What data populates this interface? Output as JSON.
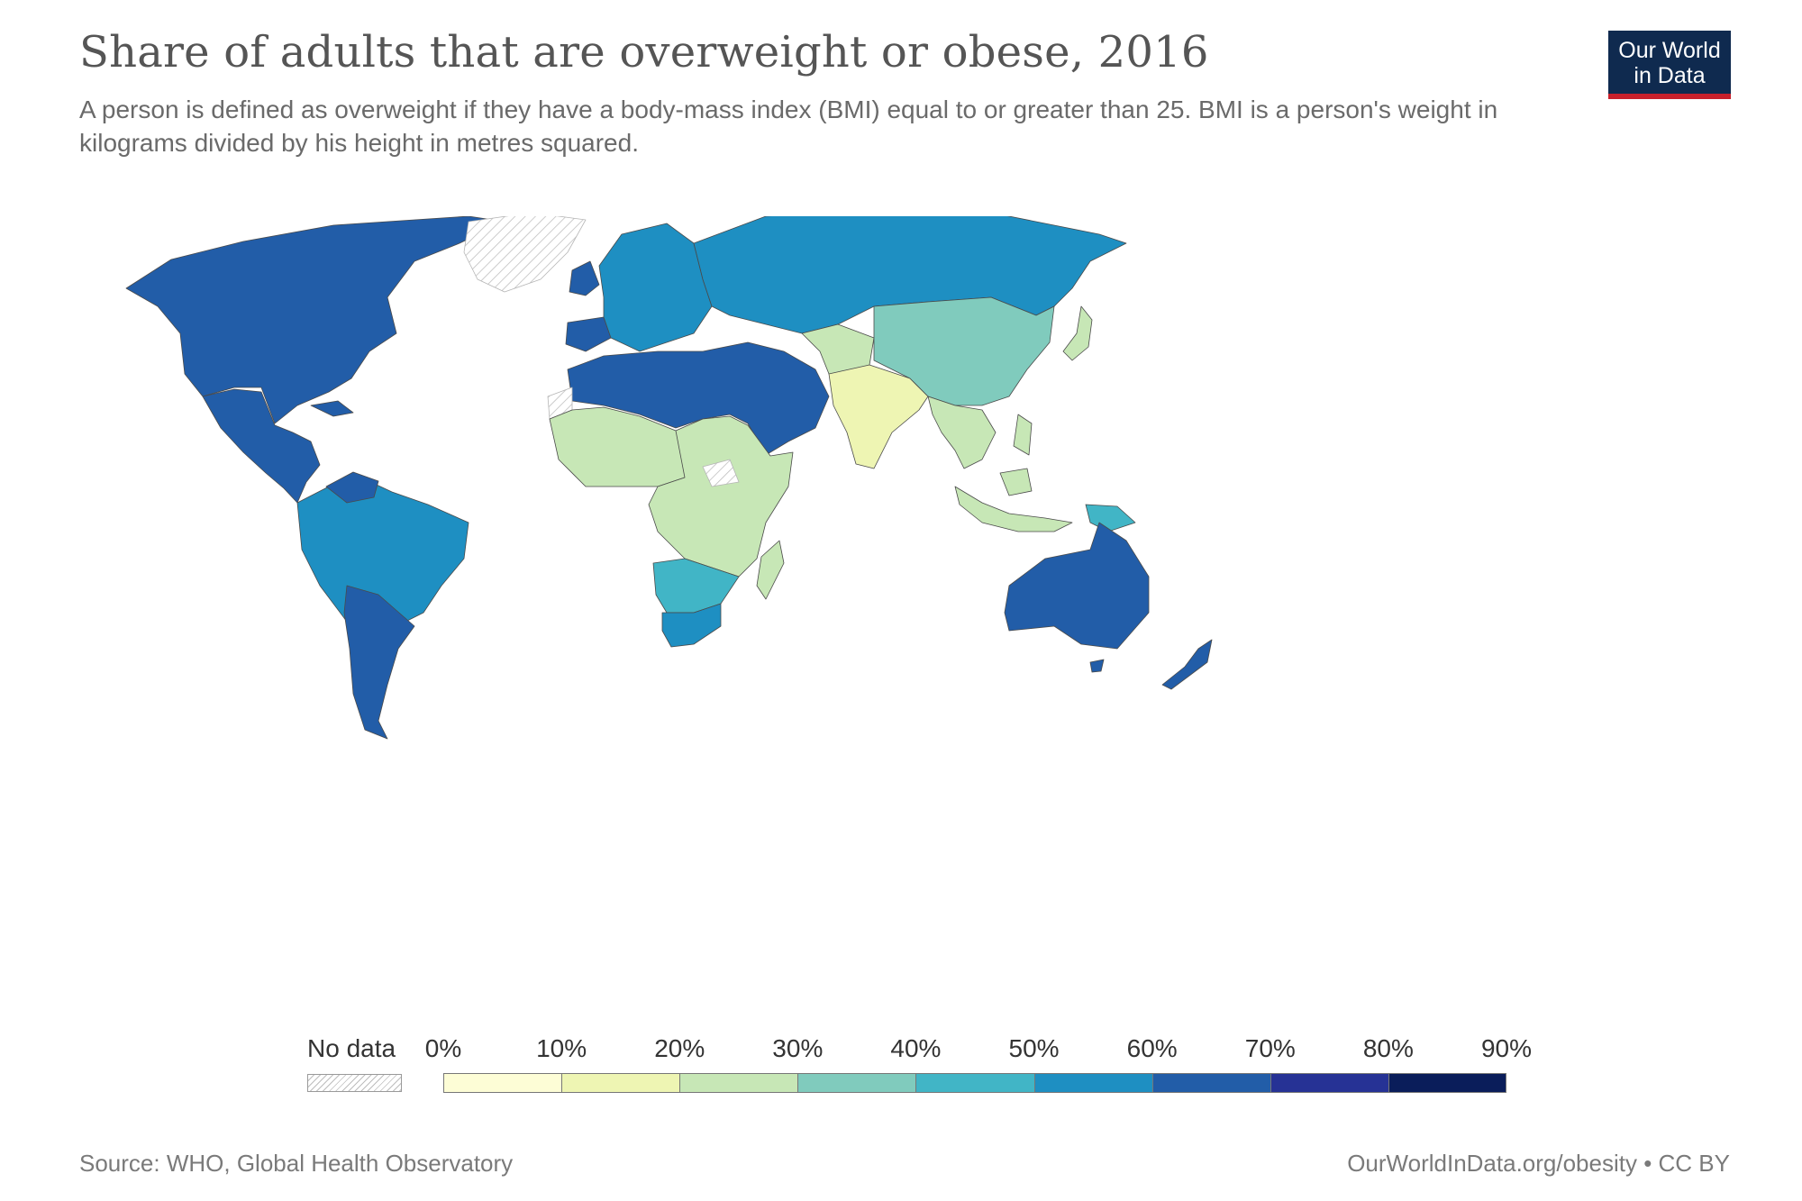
{
  "header": {
    "title": "Share of adults that are overweight or obese, 2016",
    "subtitle": "A person is defined as overweight if they have a body-mass index (BMI) equal to or greater than 25. BMI is a person's weight in kilograms divided by his height in metres squared."
  },
  "logo": {
    "line1": "Our World",
    "line2": "in Data"
  },
  "legend": {
    "no_data_label": "No data",
    "ticks": [
      "0%",
      "10%",
      "20%",
      "30%",
      "40%",
      "50%",
      "60%",
      "70%",
      "80%",
      "90%"
    ],
    "colors": [
      "#fdfdd6",
      "#eef5b3",
      "#c7e7b6",
      "#80cbbd",
      "#41b5c6",
      "#1e8fc2",
      "#225da8",
      "#263295",
      "#0a1d5a"
    ]
  },
  "footer": {
    "source": "Source: WHO, Global Health Observatory",
    "right": "OurWorldInData.org/obesity • CC BY"
  },
  "regions": [
    {
      "id": "north-america",
      "value": 65
    },
    {
      "id": "greenland",
      "value": null
    },
    {
      "id": "mexico-central-america",
      "value": 62
    },
    {
      "id": "south-america-north",
      "value": 57
    },
    {
      "id": "venezuela",
      "value": 63
    },
    {
      "id": "southern-cone",
      "value": 62
    },
    {
      "id": "europe",
      "value": 58
    },
    {
      "id": "uk-ireland",
      "value": 63
    },
    {
      "id": "iberia",
      "value": 61
    },
    {
      "id": "russia-central-asia",
      "value": 57
    },
    {
      "id": "north-africa-middle-east",
      "value": 64
    },
    {
      "id": "sahara-west",
      "value": null
    },
    {
      "id": "west-africa",
      "value": 26
    },
    {
      "id": "central-east-africa",
      "value": 24
    },
    {
      "id": "south-sudan",
      "value": null
    },
    {
      "id": "southern-africa",
      "value": 45
    },
    {
      "id": "south-africa",
      "value": 53
    },
    {
      "id": "madagascar",
      "value": 25
    },
    {
      "id": "south-asia",
      "value": 18
    },
    {
      "id": "afghanistan-pakistan",
      "value": 26
    },
    {
      "id": "china-mongolia",
      "value": 33
    },
    {
      "id": "southeast-asia",
      "value": 24
    },
    {
      "id": "japan",
      "value": 26
    },
    {
      "id": "indonesia",
      "value": 26
    },
    {
      "id": "australia",
      "value": 65
    },
    {
      "id": "new-zealand",
      "value": 65
    },
    {
      "id": "papua-new-guinea",
      "value": 45
    }
  ]
}
